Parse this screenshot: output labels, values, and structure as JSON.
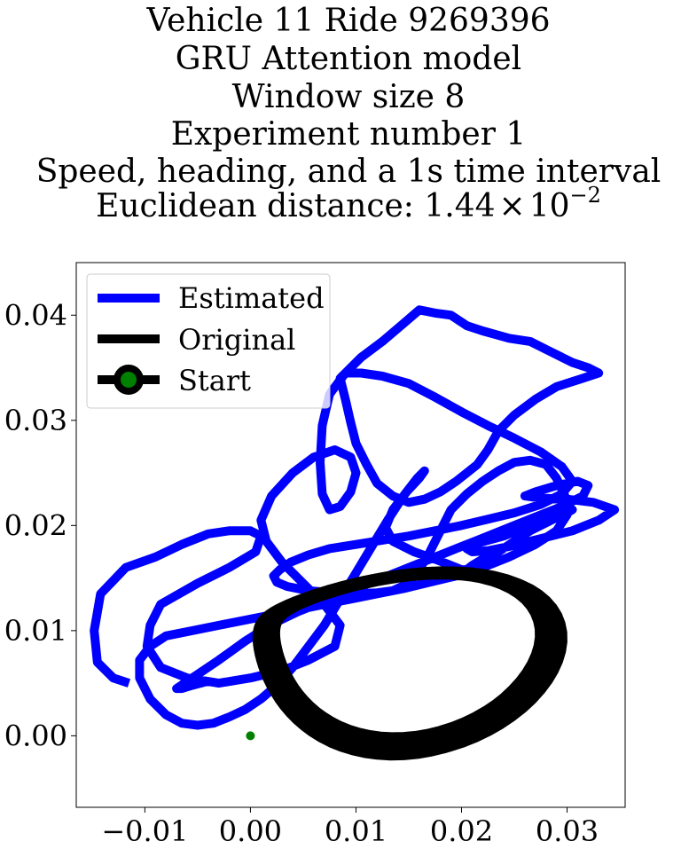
{
  "chart_data": {
    "type": "line",
    "title_lines": [
      "Vehicle 11 Ride 9269396",
      "GRU Attention model",
      "Window size 8",
      "Experiment number 1",
      "Speed, heading, and a 1s time interval"
    ],
    "title_metric": {
      "prefix": "Euclidean distance: ",
      "mantissa": "1.44",
      "times": "×",
      "base": "10",
      "exponent": "−2"
    },
    "xlim": [
      -0.0165,
      0.0355
    ],
    "ylim": [
      -0.0068,
      0.045
    ],
    "xticks": [
      {
        "v": -0.01,
        "label": "−0.01"
      },
      {
        "v": 0.0,
        "label": "0.00"
      },
      {
        "v": 0.01,
        "label": "0.01"
      },
      {
        "v": 0.02,
        "label": "0.02"
      },
      {
        "v": 0.03,
        "label": "0.03"
      }
    ],
    "yticks": [
      {
        "v": 0.0,
        "label": "0.00"
      },
      {
        "v": 0.01,
        "label": "0.01"
      },
      {
        "v": 0.02,
        "label": "0.02"
      },
      {
        "v": 0.03,
        "label": "0.03"
      },
      {
        "v": 0.04,
        "label": "0.04"
      }
    ],
    "grid": false,
    "legend_position": "upper-left",
    "legend": [
      {
        "label": "Estimated",
        "kind": "line",
        "color": "#0000ff"
      },
      {
        "label": "Original",
        "kind": "line",
        "color": "#000000"
      },
      {
        "label": "Start",
        "kind": "marker",
        "color": "#000000",
        "marker_color": "#008000"
      }
    ],
    "series": [
      {
        "name": "Estimated",
        "color": "#0000ff",
        "x": [
          -0.0115,
          -0.013,
          -0.0145,
          -0.0148,
          -0.0142,
          -0.0118,
          -0.009,
          -0.0065,
          -0.004,
          -0.002,
          0.0,
          0.001,
          0.0005,
          -0.002,
          -0.005,
          -0.0085,
          -0.0095,
          -0.0098,
          -0.0085,
          -0.006,
          -0.003,
          0.0,
          0.003,
          0.0055,
          0.008,
          0.0085,
          0.007,
          0.005,
          0.003,
          0.0015,
          0.001,
          0.002,
          0.004,
          0.006,
          0.008,
          0.0095,
          0.01,
          0.0095,
          0.0085,
          0.0075,
          0.0068,
          0.0066,
          0.0068,
          0.0075,
          0.009,
          0.0105,
          0.0125,
          0.0145,
          0.016,
          0.0175,
          0.019,
          0.0205,
          0.022,
          0.0245,
          0.0265,
          0.0285,
          0.0305,
          0.032,
          0.033,
          0.0315,
          0.029,
          0.027,
          0.025,
          0.0235,
          0.0225,
          0.0215,
          0.0205,
          0.0195,
          0.018,
          0.0165,
          0.015,
          0.0135,
          0.012,
          0.011,
          0.01,
          0.0095,
          0.009,
          0.0085,
          0.009,
          0.0105,
          0.0125,
          0.015,
          0.0175,
          0.02,
          0.0225,
          0.025,
          0.0275,
          0.0295,
          0.0305,
          0.0295,
          0.0275,
          0.025,
          0.0225,
          0.02,
          0.0175,
          0.015,
          0.0125,
          0.01,
          0.0075,
          0.0055,
          0.0038,
          0.0028,
          0.0022,
          0.0025,
          0.0035,
          0.0055,
          0.008,
          0.01,
          0.012,
          0.0135,
          0.015,
          0.016,
          0.017,
          0.018,
          0.019,
          0.0205,
          0.022,
          0.0235,
          0.025,
          0.0265,
          0.028,
          0.029,
          0.0298,
          0.03,
          0.029,
          0.027,
          0.0245,
          0.022,
          0.0195,
          0.017,
          0.0145,
          0.012,
          0.0095,
          0.007,
          0.0045,
          0.002,
          -0.0005,
          -0.003,
          -0.0055,
          -0.008,
          -0.0095,
          -0.0105,
          -0.0105,
          -0.0095,
          -0.008,
          -0.0065,
          -0.005,
          -0.0035,
          -0.002,
          -0.0005,
          0.001,
          0.0025,
          0.004,
          0.0055,
          0.007,
          0.0085,
          0.01,
          0.0115,
          0.013,
          0.0145,
          0.0158,
          0.0165,
          0.016,
          0.0148,
          0.0135,
          0.0128,
          0.0135,
          0.0155,
          0.0175,
          0.019,
          0.02,
          0.0205,
          0.021,
          0.022,
          0.0235,
          0.025,
          0.0265,
          0.0285,
          0.03,
          0.0305,
          0.0298,
          0.028,
          0.026,
          0.024,
          0.0222,
          0.021,
          0.0205,
          0.021,
          0.0225,
          0.0245,
          0.0265,
          0.0285,
          0.0305,
          0.033,
          0.0345,
          0.0325,
          0.03,
          0.0275,
          0.026,
          0.027,
          0.029,
          0.031,
          0.032,
          0.0315,
          0.0295,
          0.027,
          0.0245,
          0.022,
          0.0195,
          0.017,
          0.0145,
          0.012,
          0.0095,
          0.007,
          0.0045,
          0.002,
          -0.0005,
          -0.003,
          -0.0055,
          -0.007,
          -0.0065,
          -0.0055,
          -0.004
        ],
        "y": [
          0.005,
          0.0055,
          0.007,
          0.01,
          0.0135,
          0.016,
          0.017,
          0.0182,
          0.0192,
          0.0195,
          0.0195,
          0.019,
          0.0175,
          0.016,
          0.0145,
          0.0125,
          0.0105,
          0.0085,
          0.0065,
          0.0055,
          0.005,
          0.0055,
          0.0062,
          0.0072,
          0.0085,
          0.0105,
          0.0125,
          0.0145,
          0.0165,
          0.0185,
          0.0205,
          0.0228,
          0.025,
          0.0265,
          0.0272,
          0.0265,
          0.025,
          0.0232,
          0.0218,
          0.0215,
          0.023,
          0.026,
          0.0295,
          0.0325,
          0.0345,
          0.036,
          0.0375,
          0.0392,
          0.0405,
          0.0402,
          0.04,
          0.039,
          0.0385,
          0.0378,
          0.0375,
          0.0365,
          0.0355,
          0.035,
          0.0345,
          0.034,
          0.0332,
          0.032,
          0.0305,
          0.029,
          0.0272,
          0.0258,
          0.025,
          0.0242,
          0.0232,
          0.0225,
          0.0222,
          0.0228,
          0.024,
          0.0258,
          0.0278,
          0.0298,
          0.032,
          0.034,
          0.0345,
          0.0345,
          0.0342,
          0.0335,
          0.0322,
          0.0308,
          0.0295,
          0.0283,
          0.027,
          0.0256,
          0.0242,
          0.023,
          0.022,
          0.0212,
          0.0206,
          0.02,
          0.0195,
          0.019,
          0.0186,
          0.0182,
          0.0178,
          0.0172,
          0.0165,
          0.0158,
          0.0152,
          0.0146,
          0.0142,
          0.0138,
          0.0136,
          0.0135,
          0.0136,
          0.0138,
          0.0145,
          0.0158,
          0.0175,
          0.0195,
          0.0215,
          0.023,
          0.0242,
          0.0252,
          0.026,
          0.0262,
          0.0258,
          0.0245,
          0.0228,
          0.021,
          0.0195,
          0.0182,
          0.017,
          0.016,
          0.0152,
          0.0146,
          0.014,
          0.0135,
          0.013,
          0.0125,
          0.012,
          0.0115,
          0.011,
          0.0105,
          0.01,
          0.0095,
          0.0085,
          0.0072,
          0.0055,
          0.0035,
          0.002,
          0.0012,
          0.001,
          0.0012,
          0.0018,
          0.0025,
          0.0035,
          0.0048,
          0.0065,
          0.0085,
          0.0105,
          0.013,
          0.0155,
          0.018,
          0.0205,
          0.0228,
          0.0245,
          0.0252,
          0.0245,
          0.0232,
          0.0215,
          0.0198,
          0.0185,
          0.0175,
          0.0168,
          0.0162,
          0.0158,
          0.0158,
          0.0162,
          0.0168,
          0.0175,
          0.0185,
          0.0195,
          0.0205,
          0.0212,
          0.0215,
          0.0212,
          0.0205,
          0.0198,
          0.019,
          0.0185,
          0.0182,
          0.0178,
          0.0175,
          0.0176,
          0.018,
          0.0185,
          0.019,
          0.0195,
          0.0205,
          0.0215,
          0.0222,
          0.0225,
          0.0226,
          0.0228,
          0.0232,
          0.0238,
          0.0242,
          0.0238,
          0.0228,
          0.0218,
          0.0208,
          0.0198,
          0.0188,
          0.0178,
          0.0168,
          0.0158,
          0.0148,
          0.0138,
          0.0128,
          0.0118,
          0.0106,
          0.009,
          0.0072,
          0.0055,
          0.0045,
          0.0045,
          0.0048,
          0.0052
        ]
      },
      {
        "name": "Original",
        "color": "#000000",
        "loops": 8,
        "points_per_loop": 80
      }
    ],
    "start": {
      "x": 0.0,
      "y": 0.0
    }
  }
}
